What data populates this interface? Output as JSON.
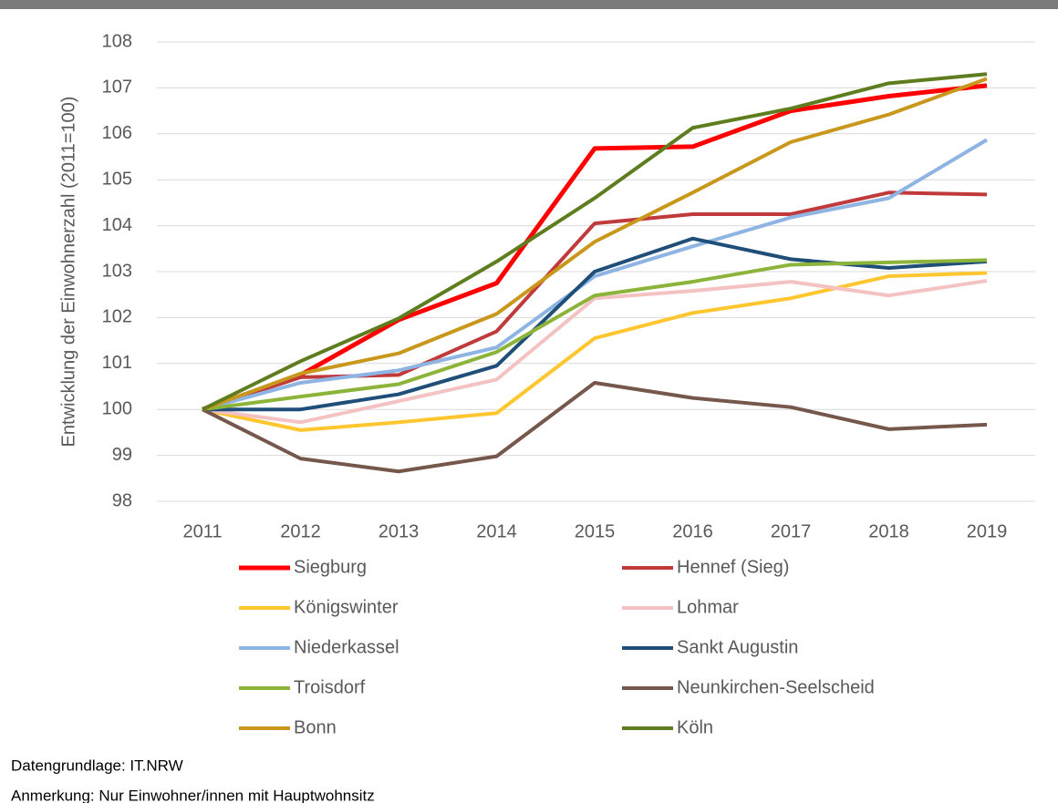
{
  "chart_data": {
    "type": "line",
    "y_label": "Entwicklung der Einwohnerzahl (2011=100)",
    "categories": [
      "2011",
      "2012",
      "2013",
      "2014",
      "2015",
      "2016",
      "2017",
      "2018",
      "2019"
    ],
    "ylim": [
      98,
      108
    ],
    "yticks": [
      98,
      99,
      100,
      101,
      102,
      103,
      104,
      105,
      106,
      107,
      108
    ],
    "grid": true,
    "series": [
      {
        "name": "Siegburg",
        "color": "#ff0000",
        "values": [
          100,
          100.75,
          101.95,
          102.75,
          105.68,
          105.72,
          106.5,
          106.82,
          107.05
        ]
      },
      {
        "name": "Hennef (Sieg)",
        "color": "#c0393b",
        "values": [
          100,
          100.7,
          100.75,
          101.7,
          104.05,
          104.25,
          104.25,
          104.72,
          104.68
        ]
      },
      {
        "name": "Königswinter",
        "color": "#ffc62f",
        "values": [
          100,
          99.55,
          99.72,
          99.92,
          101.55,
          102.1,
          102.42,
          102.9,
          102.97
        ]
      },
      {
        "name": "Lohmar",
        "color": "#f4c2c2",
        "values": [
          100,
          99.72,
          100.18,
          100.65,
          102.42,
          102.58,
          102.78,
          102.48,
          102.8
        ]
      },
      {
        "name": "Niederkassel",
        "color": "#8eb4e3",
        "values": [
          100,
          100.58,
          100.85,
          101.35,
          102.9,
          103.55,
          104.18,
          104.6,
          105.87
        ]
      },
      {
        "name": "Sankt Augustin",
        "color": "#1f4e79",
        "values": [
          100,
          100.0,
          100.33,
          100.95,
          103.0,
          103.72,
          103.27,
          103.08,
          103.22
        ]
      },
      {
        "name": "Troisdorf",
        "color": "#8db43a",
        "values": [
          100,
          100.28,
          100.55,
          101.25,
          102.48,
          102.78,
          103.15,
          103.2,
          103.25
        ]
      },
      {
        "name": "Neunkirchen-Seelscheid",
        "color": "#76574b",
        "values": [
          100,
          98.93,
          98.65,
          98.98,
          100.58,
          100.25,
          100.05,
          99.57,
          99.67
        ]
      },
      {
        "name": "Bonn",
        "color": "#c9971c",
        "values": [
          100,
          100.78,
          101.22,
          102.08,
          103.65,
          104.72,
          105.82,
          106.42,
          107.2
        ]
      },
      {
        "name": "Köln",
        "color": "#5e7d1e",
        "values": [
          100,
          101.05,
          101.98,
          103.22,
          104.6,
          106.13,
          106.55,
          107.1,
          107.3
        ]
      }
    ],
    "notes": [
      "Datengrundlage: IT.NRW",
      "Anmerkung: Nur Einwohner/innen mit Hauptwohnsitz"
    ]
  }
}
